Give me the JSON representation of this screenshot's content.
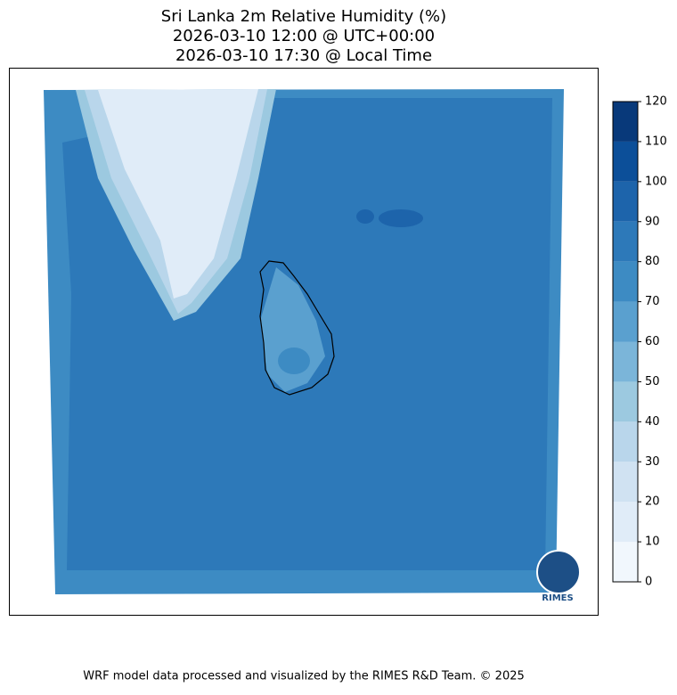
{
  "title": [
    "Sri Lanka 2m Relative Humidity (%)",
    "2026-03-10 12:00 @ UTC+00:00",
    "2026-03-10 17:30 @ Local Time"
  ],
  "colorbar": {
    "ticks": [
      0,
      10,
      20,
      30,
      40,
      50,
      60,
      70,
      80,
      90,
      100,
      110,
      120
    ],
    "colors": [
      "#f1f7fd",
      "#e0ecf8",
      "#d0e2f2",
      "#b9d6eb",
      "#9cc9e0",
      "#7bb5d9",
      "#5aa0cf",
      "#3d8bc3",
      "#2d79b9",
      "#1d64ab",
      "#0c4f99",
      "#08397a"
    ]
  },
  "logo": "RIMES",
  "footer": "WRF model data processed and visualized by the RIMES R&D Team. © 2025"
}
